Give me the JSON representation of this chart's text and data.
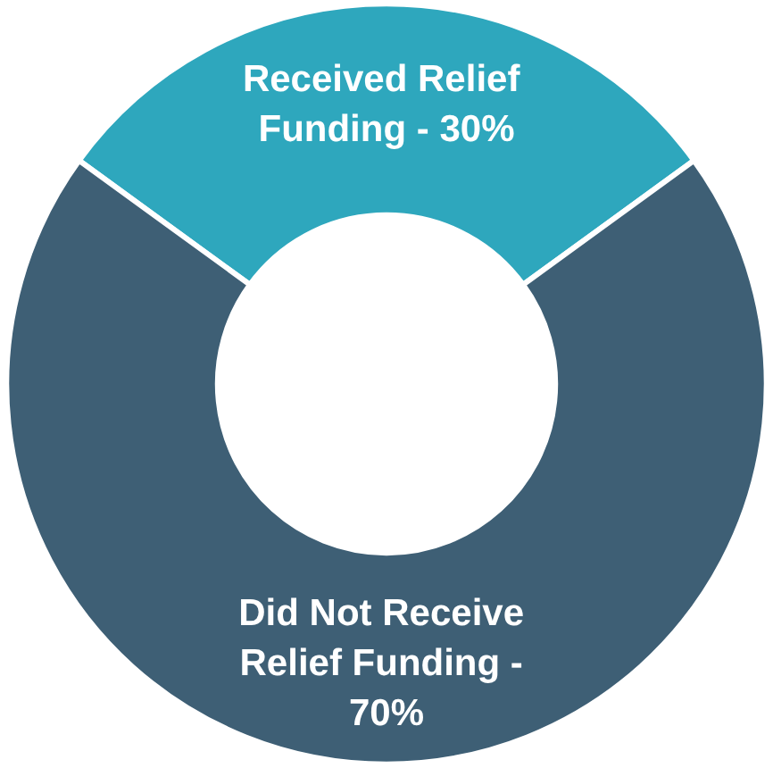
{
  "chart_data": {
    "type": "donut",
    "categories": [
      "Received Relief Funding - 30%",
      "Did Not Receive Relief Funding - 70%"
    ],
    "values": [
      30,
      70
    ],
    "colors": [
      "#2ea7bd",
      "#3e5f75"
    ],
    "legend": false
  }
}
